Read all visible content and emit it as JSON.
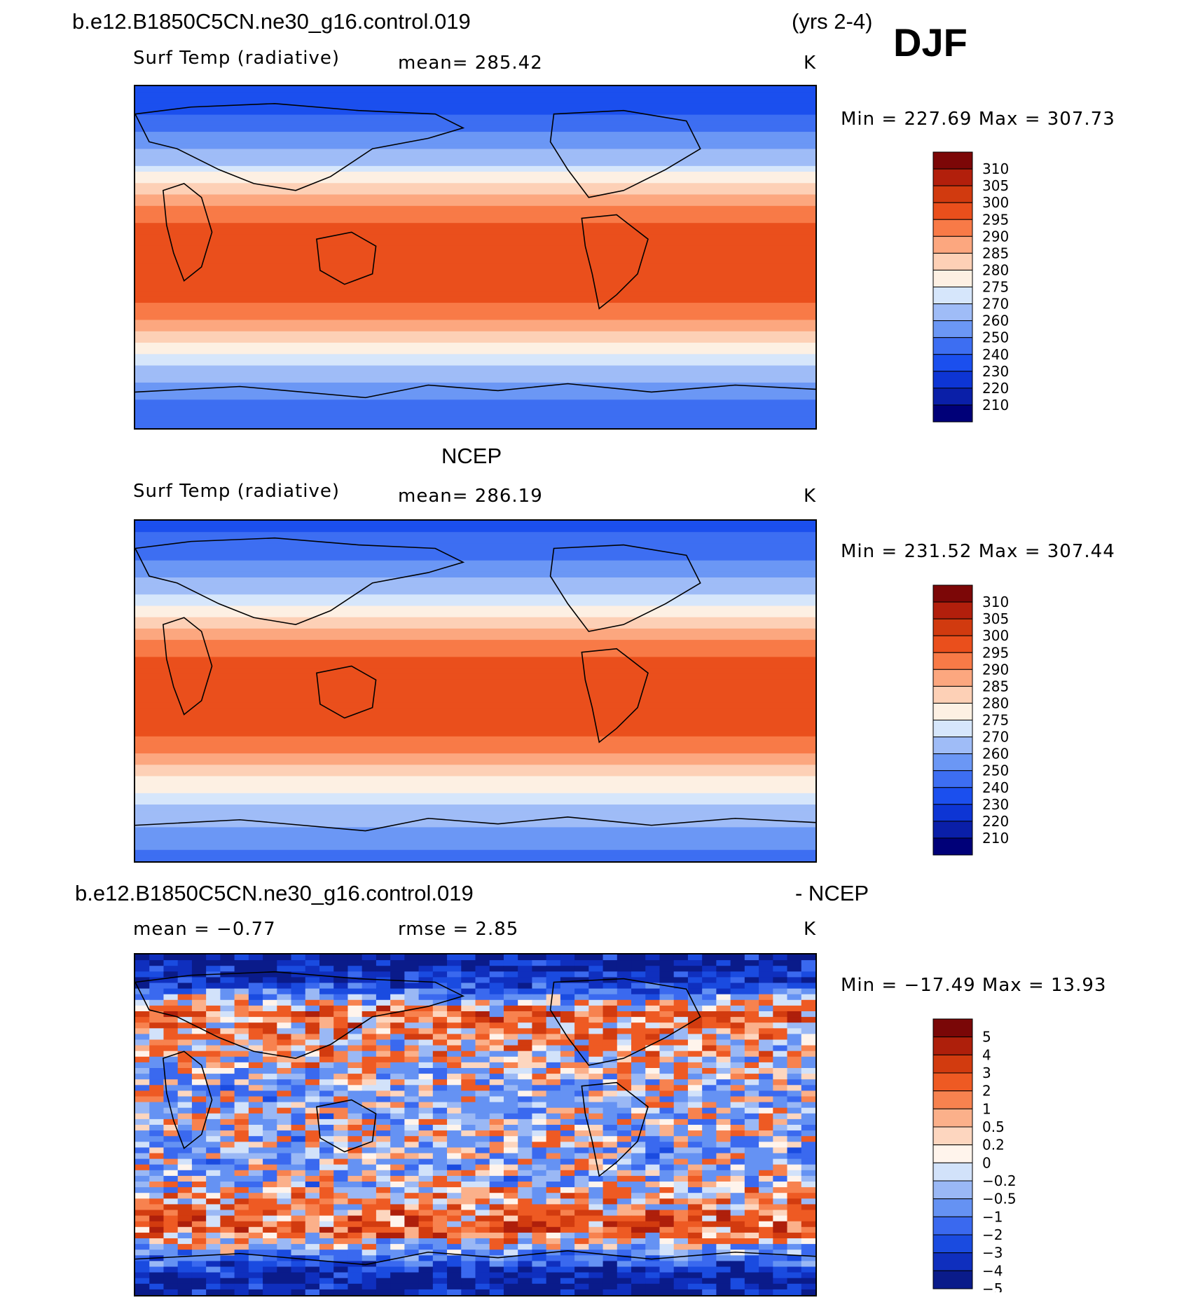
{
  "header": {
    "case_name": "b.e12.B1850C5CN.ne30_g16.control.019",
    "years": "(yrs 2-4)",
    "season": "DJF"
  },
  "panels": [
    {
      "id": "model",
      "variable": "Surf Temp (radiative)",
      "stat1": "mean=  285.42",
      "units": "K",
      "minmax": "Min  =  227.69  Max  =  307.73",
      "colorbar_labels": [
        "310",
        "305",
        "300",
        "295",
        "290",
        "285",
        "280",
        "275",
        "270",
        "260",
        "250",
        "240",
        "230",
        "220",
        "210"
      ]
    },
    {
      "id": "obs",
      "title": "NCEP",
      "variable": "Surf Temp (radiative)",
      "stat1": "mean=  286.19",
      "units": "K",
      "minmax": "Min  =  231.52  Max  =  307.44",
      "colorbar_labels": [
        "310",
        "305",
        "300",
        "295",
        "290",
        "285",
        "280",
        "275",
        "270",
        "260",
        "250",
        "240",
        "230",
        "220",
        "210"
      ]
    },
    {
      "id": "diff",
      "title_left": "b.e12.B1850C5CN.ne30_g16.control.019",
      "title_right": "- NCEP",
      "stat1": "mean  =   −0.77",
      "stat2": "rmse  =     2.85",
      "units": "K",
      "minmax": "Min  =  −17.49  Max  =    13.93",
      "colorbar_labels": [
        "5",
        "4",
        "3",
        "2",
        "1",
        "0.5",
        "0.2",
        "0",
        "−0.2",
        "−0.5",
        "−1",
        "−2",
        "−3",
        "−4",
        "−5"
      ]
    }
  ],
  "chart_data": [
    {
      "type": "heatmap",
      "title": "Surf Temp (radiative)",
      "subtitle": "b.e12.B1850C5CN.ne30_g16.control.019 (yrs 2-4) DJF",
      "units": "K",
      "mean": 285.42,
      "min": 227.69,
      "max": 307.73,
      "levels": [
        210,
        220,
        230,
        240,
        250,
        260,
        270,
        275,
        280,
        285,
        290,
        295,
        300,
        305,
        310
      ],
      "latitude_profile_K": [
        [
          90,
          235
        ],
        [
          75,
          240
        ],
        [
          60,
          258
        ],
        [
          45,
          274
        ],
        [
          30,
          288
        ],
        [
          15,
          296
        ],
        [
          0,
          299
        ],
        [
          -15,
          298
        ],
        [
          -30,
          292
        ],
        [
          -45,
          280
        ],
        [
          -55,
          272
        ],
        [
          -65,
          262
        ],
        [
          -80,
          245
        ],
        [
          -90,
          240
        ]
      ]
    },
    {
      "type": "heatmap",
      "title": "NCEP Surf Temp (radiative)",
      "units": "K",
      "mean": 286.19,
      "min": 231.52,
      "max": 307.44,
      "levels": [
        210,
        220,
        230,
        240,
        250,
        260,
        270,
        275,
        280,
        285,
        290,
        295,
        300,
        305,
        310
      ],
      "latitude_profile_K": [
        [
          90,
          238
        ],
        [
          75,
          243
        ],
        [
          60,
          259
        ],
        [
          45,
          275
        ],
        [
          30,
          289
        ],
        [
          15,
          297
        ],
        [
          0,
          300
        ],
        [
          -15,
          299
        ],
        [
          -30,
          293
        ],
        [
          -45,
          281
        ],
        [
          -55,
          273
        ],
        [
          -65,
          266
        ],
        [
          -80,
          252
        ],
        [
          -90,
          248
        ]
      ]
    },
    {
      "type": "heatmap",
      "title": "b.e12.B1850C5CN.ne30_g16.control.019 - NCEP",
      "units": "K",
      "mean": -0.77,
      "rmse": 2.85,
      "min": -17.49,
      "max": 13.93,
      "levels": [
        -5,
        -4,
        -3,
        -2,
        -1,
        -0.5,
        -0.2,
        0,
        0.2,
        0.5,
        1,
        2,
        3,
        4,
        5
      ],
      "latitude_profile_K": [
        [
          85,
          -5
        ],
        [
          75,
          -4
        ],
        [
          60,
          1.5
        ],
        [
          45,
          0.5
        ],
        [
          30,
          -0.5
        ],
        [
          15,
          -0.8
        ],
        [
          0,
          -0.6
        ],
        [
          -15,
          -0.9
        ],
        [
          -30,
          -0.7
        ],
        [
          -45,
          1
        ],
        [
          -55,
          2
        ],
        [
          -65,
          -1
        ],
        [
          -80,
          -5
        ]
      ]
    }
  ],
  "palette": {
    "temp": [
      "#000078",
      "#0a1fa8",
      "#0d35d4",
      "#1b4fee",
      "#3d6ef2",
      "#6b97f5",
      "#9fbcf7",
      "#d6e6fb",
      "#fdf0e3",
      "#fdd0b6",
      "#fca77f",
      "#f87a47",
      "#ea4f1c",
      "#d13a0f",
      "#b21f0c",
      "#7c0707"
    ],
    "diff": [
      "#0a1b8a",
      "#0f2fbe",
      "#1a4be0",
      "#3a69ef",
      "#6592f3",
      "#9ab8f5",
      "#d2e2fa",
      "#fff4ec",
      "#fdd6bf",
      "#fbb08a",
      "#f7824f",
      "#ee5a23",
      "#d23b0f",
      "#ae1f0b",
      "#7a0707"
    ]
  }
}
